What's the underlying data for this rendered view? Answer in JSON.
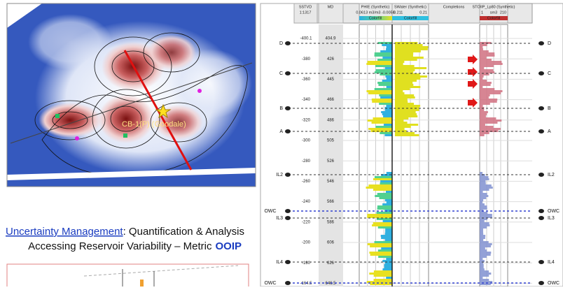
{
  "map": {
    "well_label": "CB-1(P) (Goodale)"
  },
  "heading": {
    "link": "Uncertainty Management",
    "rest": ": Quantification & Analysis",
    "line2": "Accessing Reservoir Variability – Metric",
    "emph": "OOIP"
  },
  "log": {
    "headers": {
      "sstvd": "SSTVD",
      "scale": "1:1317",
      "md": "MD",
      "phie": "PHIE (Synthetic)",
      "phie_range": "0.0613 m3/m3 -0.0058",
      "phie_fill": "Colorfill",
      "sw": "SWater (Synthetic)",
      "sw_left": "0.211",
      "sw_right": "0.21",
      "sw_fill": "Colorfill",
      "comp": "Completions",
      "stoiip": "STOIIP_Lp80 (Synthetic)",
      "st_left": "1",
      "st_unit": "sm3",
      "st_right": "210",
      "st_fill": "Colorfill"
    },
    "sstvd": [
      -400.1,
      -380,
      -360,
      -340,
      -320,
      -300,
      -280,
      -260,
      -240,
      -220,
      -200,
      -180,
      -164.5
    ],
    "md": [
      404.9,
      426,
      445,
      466,
      486,
      505,
      526,
      546,
      566,
      586,
      606,
      626,
      646.5
    ],
    "tops": [
      "D",
      "C",
      "B",
      "A",
      "IL2",
      "OWC",
      "IL3",
      "IL4",
      "OWC"
    ]
  }
}
